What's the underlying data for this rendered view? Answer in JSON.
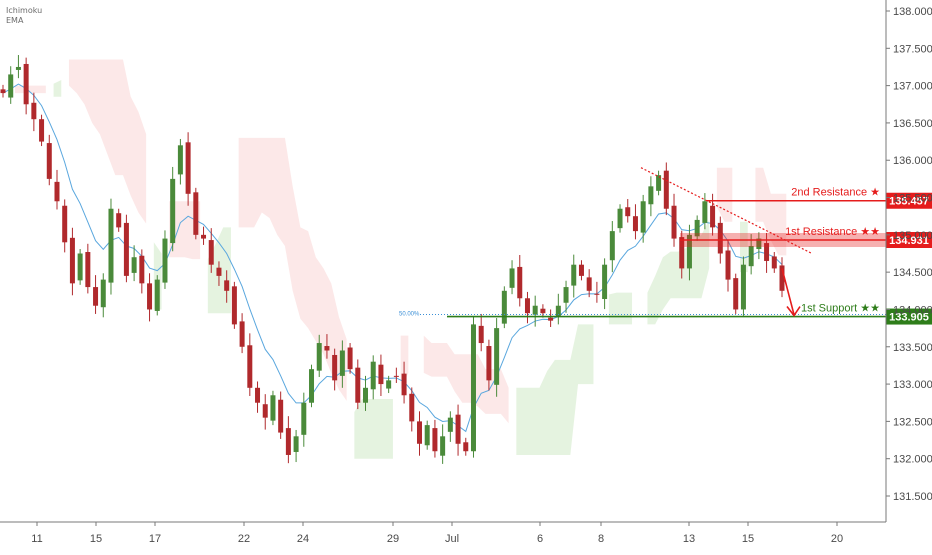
{
  "legend": {
    "line1": "Ichimoku",
    "line2": "EMA"
  },
  "chart_data": {
    "type": "line",
    "series": [
      {
        "values": [
          136.9,
          137.15,
          137.25,
          136.75,
          136.55,
          136.25,
          135.75,
          135.45,
          134.9,
          134.35,
          134.75,
          134.3,
          134.05,
          134.4,
          135.35,
          135.1,
          134.45,
          134.7,
          134.35,
          134.0,
          134.4,
          134.95,
          135.75,
          136.2,
          135.55,
          135.0,
          134.95,
          134.6,
          134.45,
          134.25,
          133.8,
          133.5,
          132.95,
          132.75,
          132.55,
          132.85,
          132.35,
          132.05,
          132.3,
          132.75,
          133.2,
          133.55,
          133.45,
          133.05,
          133.45,
          133.2,
          132.75,
          132.95,
          133.3,
          133.0,
          133.05,
          133.1,
          132.85,
          132.5,
          132.2,
          132.45,
          132.1,
          132.3,
          132.55,
          132.2,
          132.1,
          133.8,
          133.55,
          133.05,
          133.75,
          134.25,
          134.55,
          134.15,
          133.95,
          134.05,
          133.95,
          133.85,
          134.05,
          134.3,
          134.6,
          134.45,
          134.25,
          134.2,
          134.6,
          135.05,
          135.35,
          135.25,
          135.05,
          135.45,
          135.65,
          135.8,
          135.35,
          134.95,
          134.55,
          135.0,
          135.2,
          135.45,
          135.1,
          134.75,
          134.4,
          134.0,
          134.6,
          134.85,
          134.95,
          134.65,
          134.55,
          134.25
        ]
      }
    ],
    "y_ticks": [
      "138.000",
      "137.500",
      "137.000",
      "136.500",
      "136.000",
      "135.500",
      "135.000",
      "134.500",
      "134.000",
      "133.500",
      "133.000",
      "132.500",
      "132.000",
      "131.500"
    ],
    "x_ticks": [
      "11",
      "15",
      "17",
      "22",
      "24",
      "29",
      "Jul",
      "6",
      "8",
      "13",
      "15",
      "20"
    ],
    "ylim": [
      131.25,
      138.25
    ],
    "levels": [
      {
        "label": "2nd Resistance ★",
        "value": 135.457,
        "value_text": "135.457",
        "color": "#e51c1c"
      },
      {
        "label": "1st Resistance ★★",
        "value": 134.931,
        "value_text": "134.931",
        "color": "#e51c1c"
      },
      {
        "label": "1st Support ★★",
        "value": 133.905,
        "value_text": "133.905",
        "color": "#2e7d1a"
      }
    ],
    "fib_label": "50.00%",
    "colors": {
      "up": "#4a8a3a",
      "down": "#b0292c",
      "ema": "#5aa7de",
      "resistance": "#e51c1c",
      "support": "#2e7d1a"
    }
  }
}
